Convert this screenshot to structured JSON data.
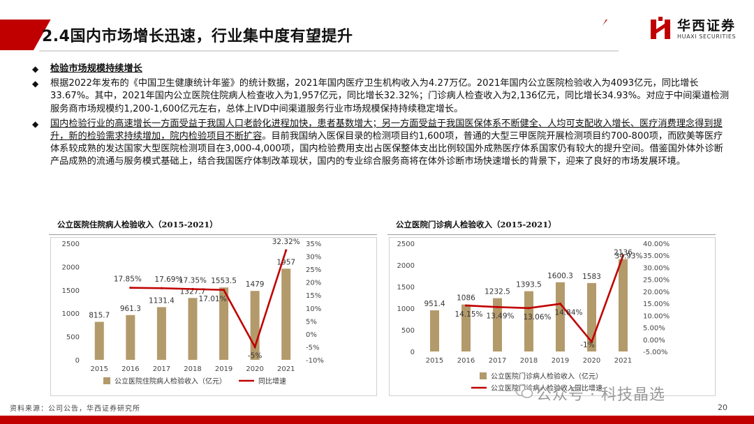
{
  "header": {
    "title": "2.4国内市场增长迅速，行业集中度有望提升",
    "logo_cn": "华西证券",
    "logo_en": "HUAXI SECURITIES"
  },
  "bullets": {
    "b1_title": "检验市场规模持续增长",
    "b2": "根据2022年发布的《中国卫生健康统计年鉴》的统计数据，2021年国内医疗卫生机构收入为4.27万亿。2021年国内公立医院检验收入为4093亿元，同比增长33.67%。其中，2021年国内公立医院住院病人检查收入为1,957亿元，同比增长32.32%；门诊病人检查收入为2,136亿元，同比增长34.93%。对应于中间渠道检测服务商市场规模约1,200-1,600亿元左右，总体上IVD中间渠道服务行业市场规模保持持续稳定增长。",
    "b3_u1": "国内检验行业的高速增长一方面受益于我国人口老龄化进程加快，患者基数增大；另一方面受益于我国医保体系不断健全、人均可支配收入增长、医疗消费理念得到提升，新的检验需求持续增加，院内检验项目不断扩容",
    "b3_rest": "。目前我国纳入医保目录的检测项目约1,600项，普通的大型三甲医院开展检测项目约700-800项，而欧美等医疗体系较成熟的发达国家大型医院检测项目在3,000-4,000项，国内检验费用支出占医保整体支出比例较国外成熟医疗体系国家仍有较大的提升空间。借鉴国外体外诊断产品成熟的流通与服务模式基础上，结合我国医疗体制改革现状，国内的专业综合服务商将在体外诊断市场快速增长的背景下，迎来了良好的市场发展环境。"
  },
  "colors": {
    "brand_red": "#c00000",
    "bar": "#b39a6b",
    "line": "#c00000"
  },
  "chart_data": [
    {
      "type": "bar",
      "title": "公立医院住院病人检验收入（2015-2021）",
      "categories": [
        "2015",
        "2016",
        "2017",
        "2018",
        "2019",
        "2020",
        "2021"
      ],
      "series": [
        {
          "name": "公立医院住院病人检验收入（亿元）",
          "type": "bar",
          "axis": "left",
          "values": [
            815.7,
            961.3,
            1131.4,
            1327.7,
            1553.5,
            1479,
            1957
          ],
          "labels": [
            "815.7",
            "961.3",
            "1131.4",
            "1327.7",
            "1553.5",
            "1479",
            "1957"
          ]
        },
        {
          "name": "同比增速",
          "type": "line",
          "axis": "right",
          "values": [
            null,
            17.85,
            17.69,
            17.35,
            17.01,
            -5,
            32.32
          ],
          "labels": [
            "",
            "17.85%",
            "17.69%",
            "17.35%",
            "17.01%",
            "-5%",
            "32.32%"
          ]
        }
      ],
      "yleft": {
        "min": 0,
        "max": 2500,
        "ticks": [
          "0",
          "500",
          "1000",
          "1500",
          "2000",
          "2500"
        ]
      },
      "yright": {
        "min": -10,
        "max": 35,
        "ticks": [
          "-10%",
          "-5%",
          "0%",
          "5%",
          "10%",
          "15%",
          "20%",
          "25%",
          "30%",
          "35%"
        ]
      },
      "legend": "bottom"
    },
    {
      "type": "bar",
      "title": "公立医院门诊病人检验收入（2015-2021）",
      "categories": [
        "2015",
        "2016",
        "2017",
        "2018",
        "2019",
        "2020",
        "2021"
      ],
      "series": [
        {
          "name": "公立医院门诊病人检验收入（亿元）",
          "type": "bar",
          "axis": "left",
          "values": [
            951.4,
            1086,
            1232.5,
            1393.5,
            1600.3,
            1583,
            2136
          ],
          "labels": [
            "951.4",
            "1086",
            "1232.5",
            "1393.5",
            "1600.3",
            "1583",
            "2136"
          ]
        },
        {
          "name": "公立医院门诊病人检验收入同比增速",
          "type": "line",
          "axis": "right",
          "values": [
            null,
            14.15,
            13.49,
            13.06,
            14.84,
            -1,
            34.93
          ],
          "labels": [
            "",
            "14.15%",
            "13.49%",
            "13.06%",
            "14.84%",
            "-1%",
            "34.93%"
          ]
        }
      ],
      "yleft": {
        "min": 0,
        "max": 2500,
        "ticks": [
          "0",
          "500",
          "1000",
          "1500",
          "2000",
          "2500"
        ]
      },
      "yright": {
        "min": -5,
        "max": 40,
        "ticks": [
          "-5.00%",
          "0.00%",
          "5.00%",
          "10.00%",
          "15.00%",
          "20.00%",
          "25.00%",
          "30.00%",
          "35.00%",
          "40.00%"
        ]
      },
      "legend": "bottom"
    }
  ],
  "footer": {
    "source": "资料来源：公司公告，华西证券研究所",
    "watermark": "公众号 · 科技晶选",
    "page": "20"
  }
}
